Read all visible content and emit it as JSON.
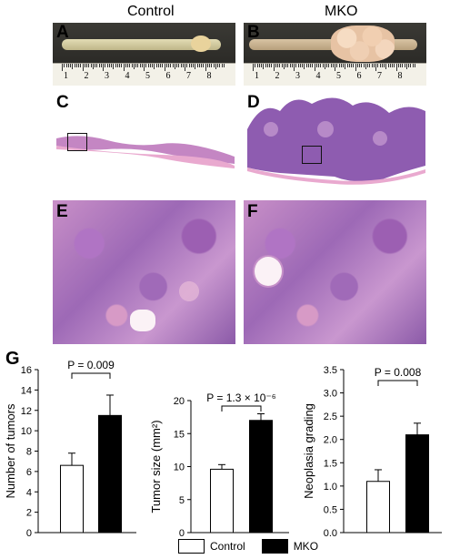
{
  "columns": {
    "left": "Control",
    "right": "MKO"
  },
  "panel_labels": {
    "a": "A",
    "b": "B",
    "c": "C",
    "d": "D",
    "e": "E",
    "f": "F",
    "g": "G"
  },
  "ruler": {
    "numbers": [
      "1",
      "2",
      "3",
      "4",
      "5",
      "6",
      "7",
      "8"
    ]
  },
  "legend": {
    "control": "Control",
    "mko": "MKO"
  },
  "colors": {
    "control_fill": "#ffffff",
    "mko_fill": "#000000",
    "he_pink": "#e9b2d0",
    "he_purple": "#8d56ab"
  },
  "chart_data": [
    {
      "type": "bar",
      "categories": [
        "Control",
        "MKO"
      ],
      "values": [
        6.6,
        11.5
      ],
      "errors": [
        1.2,
        2.0
      ],
      "ylabel": "Number of tumors",
      "ylim": [
        0,
        16
      ],
      "yticks": [
        "0",
        "2",
        "4",
        "6",
        "8",
        "10",
        "12",
        "14",
        "16"
      ],
      "annotation": "P = 0.009"
    },
    {
      "type": "bar",
      "categories": [
        "Control",
        "MKO"
      ],
      "values": [
        9.6,
        17.0
      ],
      "errors": [
        0.7,
        1.0
      ],
      "ylabel": "Tumor size (mm²)",
      "ylim": [
        0,
        20
      ],
      "yticks": [
        "0",
        "5",
        "10",
        "15",
        "20"
      ],
      "annotation": "P = 1.3 × 10⁻⁶"
    },
    {
      "type": "bar",
      "categories": [
        "Control",
        "MKO"
      ],
      "values": [
        1.1,
        2.1
      ],
      "errors": [
        0.25,
        0.25
      ],
      "ylabel": "Neoplasia grading",
      "ylim": [
        0,
        3.5
      ],
      "yticks": [
        "0.0",
        "0.5",
        "1.0",
        "1.5",
        "2.0",
        "2.5",
        "3.0",
        "3.5"
      ],
      "annotation": "P = 0.008"
    }
  ]
}
